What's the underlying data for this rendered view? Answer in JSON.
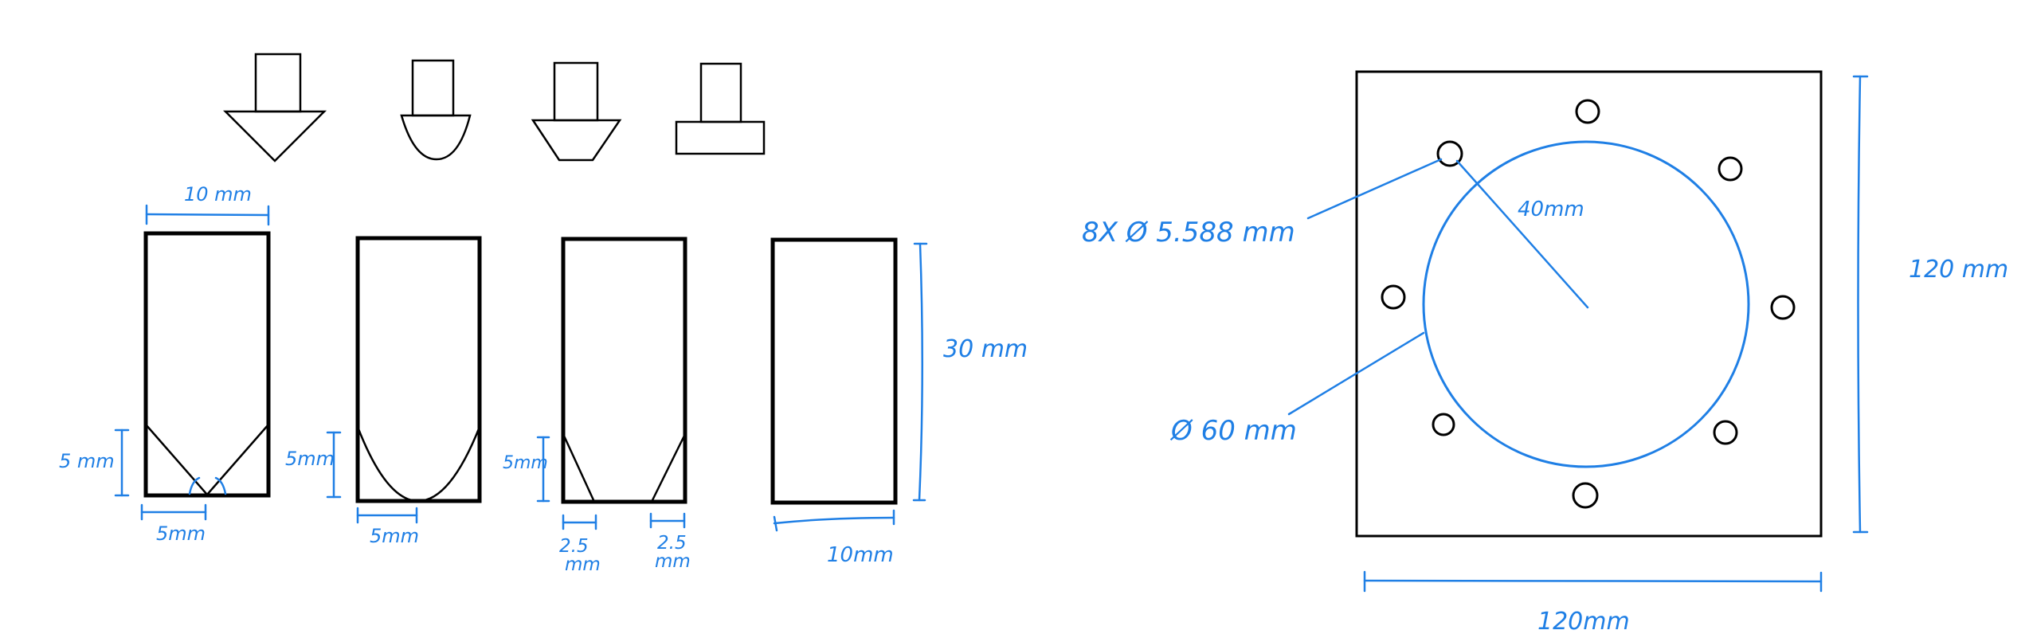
{
  "colors": {
    "ink": "#000000",
    "annotation": "#1f7fe5"
  },
  "labels": {
    "width_10mm_top": "10 mm",
    "depth_5mm_a": "5 mm",
    "width_5mm_a": "5mm",
    "depth_5mm_b": "5mm",
    "width_5mm_b": "5mm",
    "depth_5mm_c": "5mm",
    "flat_2_5_left_num": "2.5",
    "flat_2_5_left_unit": "mm",
    "flat_2_5_right_num": "2.5",
    "flat_2_5_right_unit": "mm",
    "height_30mm": "30 mm",
    "width_10mm_bottom": "10mm",
    "holes_callout": "8X Ø 5.588 mm",
    "radius_40mm": "40mm",
    "circle_60mm": "Ø 60 mm",
    "plate_height": "120 mm",
    "plate_width": "120mm"
  },
  "icons": [
    "v-tip-icon",
    "round-tip-icon",
    "truncated-tip-icon",
    "flat-tip-icon"
  ]
}
